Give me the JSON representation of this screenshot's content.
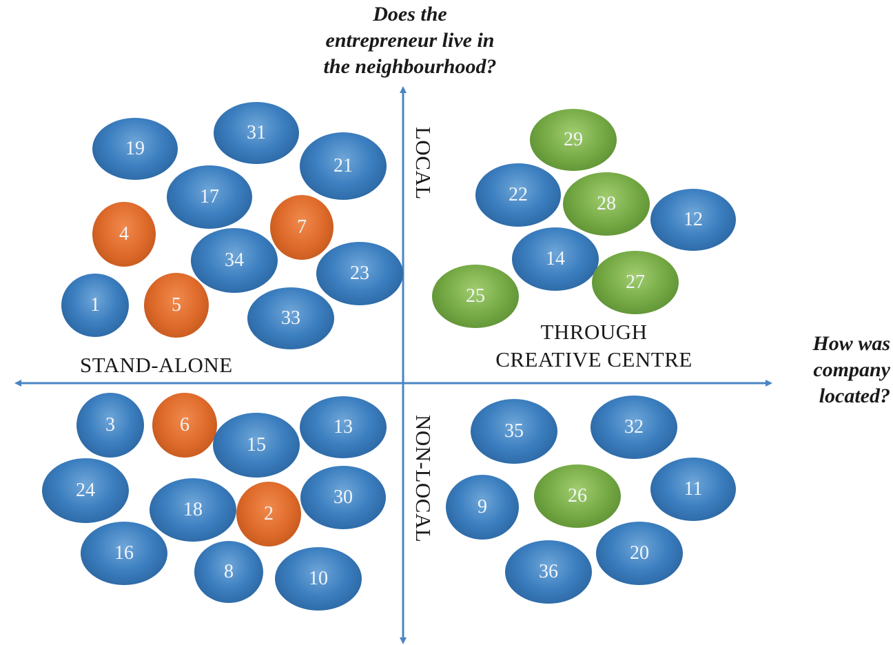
{
  "vertical_question": "Does the entrepreneur live in the neighbourhood?",
  "vertical_question_lines": [
    "Does the",
    "entrepreneur live in",
    "the neighbourhood?"
  ],
  "horizontal_question": "How was company located?",
  "horizontal_question_lines": [
    "How was",
    "company",
    "located?"
  ],
  "axis_labels": {
    "top": "LOCAL",
    "bottom": "NON-LOCAL",
    "left": "STAND-ALONE",
    "right_line1": "THROUGH",
    "right_line2": "CREATIVE CENTRE"
  },
  "colors": {
    "axis": "#4a85c2",
    "blue": "#3c7fc0",
    "orange": "#de6a2a",
    "green": "#74a944"
  },
  "quadrants": {
    "local_standalone": [
      {
        "id": "19",
        "color": "blue"
      },
      {
        "id": "31",
        "color": "blue"
      },
      {
        "id": "21",
        "color": "blue"
      },
      {
        "id": "17",
        "color": "blue"
      },
      {
        "id": "4",
        "color": "orange"
      },
      {
        "id": "7",
        "color": "orange"
      },
      {
        "id": "34",
        "color": "blue"
      },
      {
        "id": "23",
        "color": "blue"
      },
      {
        "id": "1",
        "color": "blue"
      },
      {
        "id": "5",
        "color": "orange"
      },
      {
        "id": "33",
        "color": "blue"
      }
    ],
    "local_creative_centre": [
      {
        "id": "29",
        "color": "green"
      },
      {
        "id": "22",
        "color": "blue"
      },
      {
        "id": "28",
        "color": "green"
      },
      {
        "id": "12",
        "color": "blue"
      },
      {
        "id": "14",
        "color": "blue"
      },
      {
        "id": "25",
        "color": "green"
      },
      {
        "id": "27",
        "color": "green"
      }
    ],
    "nonlocal_standalone": [
      {
        "id": "3",
        "color": "blue"
      },
      {
        "id": "6",
        "color": "orange"
      },
      {
        "id": "13",
        "color": "blue"
      },
      {
        "id": "15",
        "color": "blue"
      },
      {
        "id": "24",
        "color": "blue"
      },
      {
        "id": "30",
        "color": "blue"
      },
      {
        "id": "18",
        "color": "blue"
      },
      {
        "id": "2",
        "color": "orange"
      },
      {
        "id": "16",
        "color": "blue"
      },
      {
        "id": "8",
        "color": "blue"
      },
      {
        "id": "10",
        "color": "blue"
      }
    ],
    "nonlocal_creative_centre": [
      {
        "id": "35",
        "color": "blue"
      },
      {
        "id": "32",
        "color": "blue"
      },
      {
        "id": "9",
        "color": "blue"
      },
      {
        "id": "26",
        "color": "green"
      },
      {
        "id": "11",
        "color": "blue"
      },
      {
        "id": "20",
        "color": "blue"
      },
      {
        "id": "36",
        "color": "blue"
      }
    ]
  }
}
